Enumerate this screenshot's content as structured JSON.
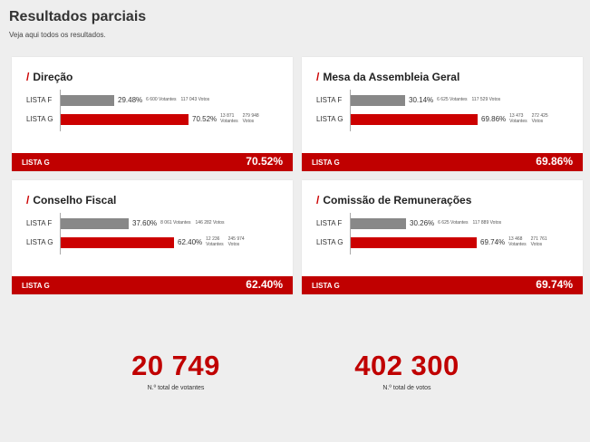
{
  "page": {
    "title": "Resultados parciais",
    "subtitle": "Veja aqui todos os resultados."
  },
  "cards": [
    {
      "slash": "/",
      "title": "Direção",
      "rows": [
        {
          "label": "LISTA F",
          "fraction": 0.2948,
          "pct": "29.48%",
          "voters": "6 600 Votantes",
          "votes": "117 043 Votos",
          "voters_num": "",
          "voters_word": "",
          "votes_num": "",
          "votes_word": ""
        },
        {
          "label": "LISTA G",
          "fraction": 0.7052,
          "pct": "70.52%",
          "voters": "",
          "votes": "",
          "voters_num": "13 871",
          "voters_word": "Votantes",
          "votes_num": "279 948",
          "votes_word": "Votos"
        }
      ],
      "winner": {
        "label": "LISTA G",
        "pct": "70.52%"
      }
    },
    {
      "slash": "/",
      "title": "Mesa da Assembleia Geral",
      "rows": [
        {
          "label": "LISTA F",
          "fraction": 0.3014,
          "pct": "30.14%",
          "voters": "6 625 Votantes",
          "votes": "117 529 Votos",
          "voters_num": "",
          "voters_word": "",
          "votes_num": "",
          "votes_word": ""
        },
        {
          "label": "LISTA G",
          "fraction": 0.6986,
          "pct": "69.86%",
          "voters": "",
          "votes": "",
          "voters_num": "13 473",
          "voters_word": "Votantes",
          "votes_num": "272 425",
          "votes_word": "Votos"
        }
      ],
      "winner": {
        "label": "LISTA G",
        "pct": "69.86%"
      }
    },
    {
      "slash": "/",
      "title": "Conselho Fiscal",
      "rows": [
        {
          "label": "LISTA F",
          "fraction": 0.376,
          "pct": "37.60%",
          "voters": "8 061 Votantes",
          "votes": "146 282 Votos",
          "voters_num": "",
          "voters_word": "",
          "votes_num": "",
          "votes_word": ""
        },
        {
          "label": "LISTA G",
          "fraction": 0.624,
          "pct": "62.40%",
          "voters": "",
          "votes": "",
          "voters_num": "12 236",
          "voters_word": "Votantes",
          "votes_num": "245 974",
          "votes_word": "Votos"
        }
      ],
      "winner": {
        "label": "LISTA G",
        "pct": "62.40%"
      }
    },
    {
      "slash": "/",
      "title": "Comissão de Remunerações",
      "rows": [
        {
          "label": "LISTA F",
          "fraction": 0.3026,
          "pct": "30.26%",
          "voters": "6 625 Votantes",
          "votes": "117 889 Votos",
          "voters_num": "",
          "voters_word": "",
          "votes_num": "",
          "votes_word": ""
        },
        {
          "label": "LISTA G",
          "fraction": 0.6974,
          "pct": "69.74%",
          "voters": "",
          "votes": "",
          "voters_num": "13 468",
          "voters_word": "Votantes",
          "votes_num": "271 761",
          "votes_word": "Votos"
        }
      ],
      "winner": {
        "label": "LISTA G",
        "pct": "69.74%"
      }
    }
  ],
  "totals": [
    {
      "value": "20 749",
      "label": "N.º total de votantes"
    },
    {
      "value": "402 300",
      "label": "N.º total de votos"
    }
  ],
  "colors": {
    "accent": "#cc0000",
    "winner_band": "#c00000",
    "bar_f": "#888888",
    "background": "#eeeeee",
    "card": "#ffffff"
  }
}
